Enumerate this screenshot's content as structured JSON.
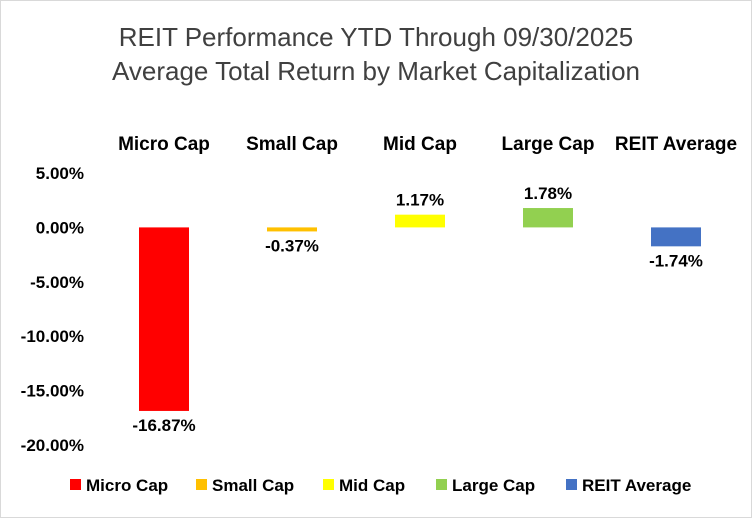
{
  "chart_data": {
    "type": "bar",
    "title": "REIT Performance YTD Through 09/30/2025",
    "subtitle": "Average Total Return by Market Capitalization",
    "categories": [
      "Micro Cap",
      "Small Cap",
      "Mid Cap",
      "Large Cap",
      "REIT Average"
    ],
    "values": [
      -16.87,
      -0.37,
      1.17,
      1.78,
      -1.74
    ],
    "value_labels": [
      "-16.87%",
      "-0.37%",
      "1.17%",
      "1.78%",
      "-1.74%"
    ],
    "colors": [
      "#ff0000",
      "#ffc000",
      "#ffff00",
      "#92d050",
      "#4472c4"
    ],
    "yticks": [
      5,
      0,
      -5,
      -10,
      -15,
      -20
    ],
    "ytick_labels": [
      "5.00%",
      "0.00%",
      "-5.00%",
      "-10.00%",
      "-15.00%",
      "-20.00%"
    ],
    "ylim": [
      -20,
      5
    ],
    "grid": false,
    "category_labels_position": "top",
    "legend_position": "bottom"
  }
}
